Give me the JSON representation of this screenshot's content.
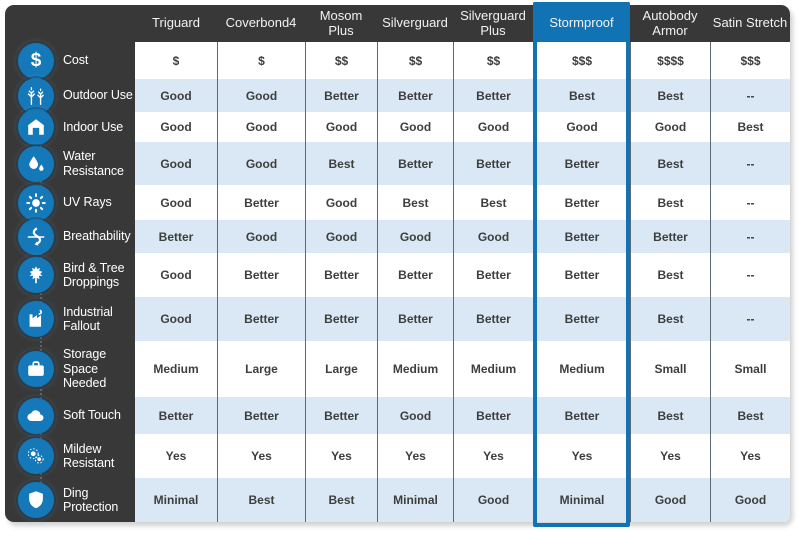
{
  "chart_data": {
    "type": "table",
    "columns": [
      "Triguard",
      "Coverbond4",
      "Mosom Plus",
      "Silverguard",
      "Silverguard Plus",
      "Stormproof",
      "Autobody Armor",
      "Satin Stretch"
    ],
    "highlighted_column": "Stormproof",
    "rows": [
      {
        "label": "Cost",
        "icon": "dollar-icon",
        "values": [
          "$",
          "$",
          "$$",
          "$$",
          "$$",
          "$$$",
          "$$$$",
          "$$$"
        ]
      },
      {
        "label": "Outdoor Use",
        "icon": "trees-icon",
        "values": [
          "Good",
          "Good",
          "Better",
          "Better",
          "Better",
          "Best",
          "Best",
          "--"
        ]
      },
      {
        "label": "Indoor Use",
        "icon": "garage-icon",
        "values": [
          "Good",
          "Good",
          "Good",
          "Good",
          "Good",
          "Good",
          "Good",
          "Best"
        ]
      },
      {
        "label": "Water Resistance",
        "icon": "water-drop-icon",
        "values": [
          "Good",
          "Good",
          "Best",
          "Better",
          "Better",
          "Better",
          "Best",
          "--"
        ]
      },
      {
        "label": "UV Rays",
        "icon": "sun-icon",
        "values": [
          "Good",
          "Better",
          "Good",
          "Best",
          "Best",
          "Better",
          "Best",
          "--"
        ]
      },
      {
        "label": "Breathability",
        "icon": "airflow-icon",
        "values": [
          "Better",
          "Good",
          "Good",
          "Good",
          "Good",
          "Better",
          "Better",
          "--"
        ]
      },
      {
        "label": "Bird & Tree Droppings",
        "icon": "maple-leaf-icon",
        "values": [
          "Good",
          "Better",
          "Better",
          "Better",
          "Better",
          "Better",
          "Best",
          "--"
        ]
      },
      {
        "label": "Industrial Fallout",
        "icon": "factory-icon",
        "values": [
          "Good",
          "Better",
          "Better",
          "Better",
          "Better",
          "Better",
          "Best",
          "--"
        ]
      },
      {
        "label": "Storage Space Needed",
        "icon": "briefcase-icon",
        "values": [
          "Medium",
          "Large",
          "Large",
          "Medium",
          "Medium",
          "Medium",
          "Small",
          "Small"
        ]
      },
      {
        "label": "Soft Touch",
        "icon": "cloud-icon",
        "values": [
          "Better",
          "Better",
          "Better",
          "Good",
          "Better",
          "Better",
          "Best",
          "Best"
        ]
      },
      {
        "label": "Mildew Resistant",
        "icon": "spores-icon",
        "values": [
          "Yes",
          "Yes",
          "Yes",
          "Yes",
          "Yes",
          "Yes",
          "Yes",
          "Yes"
        ]
      },
      {
        "label": "Ding Protection",
        "icon": "shield-icon",
        "values": [
          "Minimal",
          "Best",
          "Best",
          "Minimal",
          "Good",
          "Minimal",
          "Good",
          "Good"
        ]
      }
    ]
  },
  "colors": {
    "accent_blue": "#1173b4",
    "icon_blue": "#1478b9",
    "header_dark": "#383838",
    "row_alt": "#d9e8f4",
    "cell_text": "#3e3e3e",
    "separator": "#5d6a73"
  }
}
